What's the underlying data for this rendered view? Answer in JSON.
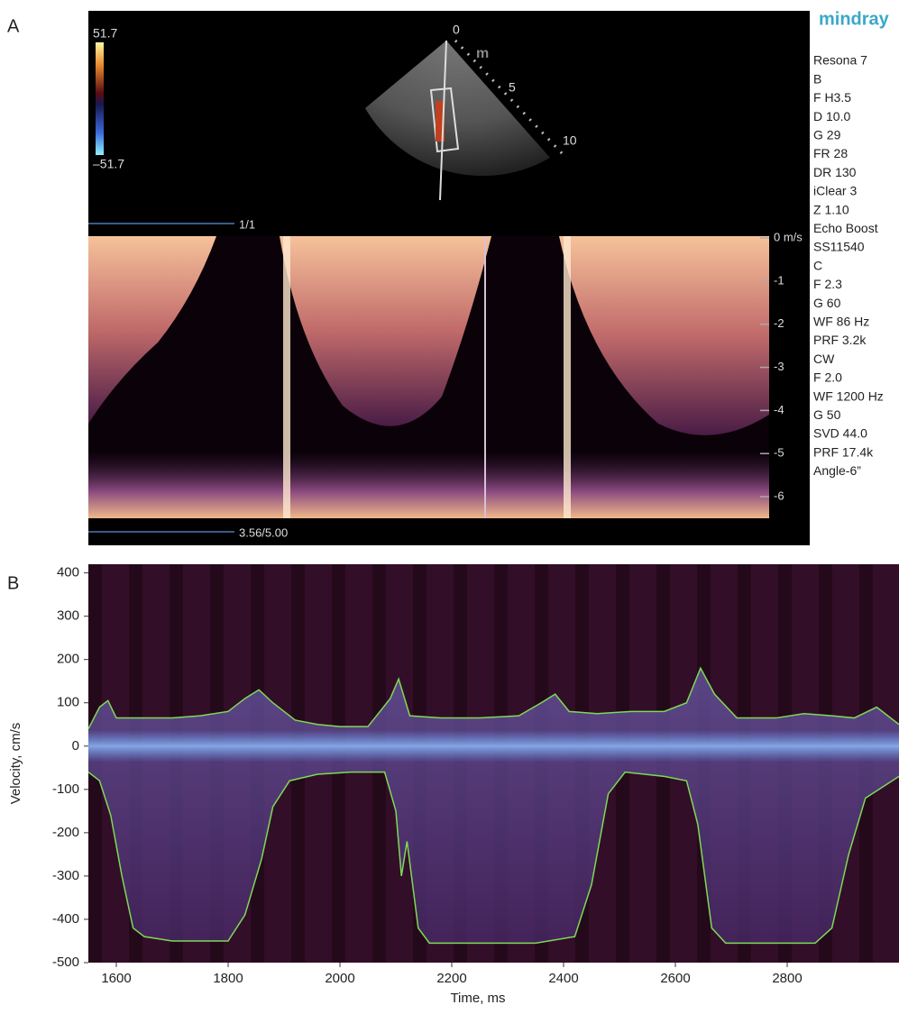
{
  "panel_a": {
    "label": "A",
    "brand": "mindray",
    "colorbar_labels": [
      "51.7",
      "–51.7"
    ],
    "depth_labels": [
      "0",
      "5",
      "10"
    ],
    "probe_mark": "m",
    "frame_label": "1/1",
    "sweep_label": "3.56/5.00",
    "settings": [
      "Resona 7",
      "B",
      "F H3.5",
      "D 10.0",
      "G 29",
      "FR 28",
      "DR 130",
      "iClear 3",
      "Z 1.10",
      "Echo Boost",
      "SS11540",
      "C",
      "F 2.3",
      "G 60",
      "WF 86 Hz",
      "PRF 3.2k",
      "CW",
      "F 2.0",
      "WF 1200 Hz",
      "G 50",
      "SVD 44.0",
      "PRF 17.4k",
      "Angle-6”"
    ],
    "velocity_scale": {
      "ylim": [
        -6.5,
        0
      ],
      "yticks": [
        {
          "value": 0,
          "label": "0 m/s"
        },
        -1,
        -2,
        -3,
        -4,
        -5,
        -6
      ]
    }
  },
  "chart_data": {
    "type": "line",
    "label": "B",
    "xlabel": "Time, ms",
    "ylabel": "Velocity, cm/s",
    "xlim": [
      1550,
      3000
    ],
    "ylim": [
      -500,
      420
    ],
    "xticks": [
      1600,
      1800,
      2000,
      2200,
      2400,
      2600,
      2800
    ],
    "yticks": [
      -500,
      -400,
      -300,
      -200,
      -100,
      0,
      100,
      200,
      300,
      400
    ],
    "series": [
      {
        "color": "#7ed957",
        "x": [
          1550,
          1570,
          1585,
          1600,
          1650,
          1700,
          1750,
          1800,
          1830,
          1855,
          1880,
          1920,
          1960,
          2000,
          2050,
          2090,
          2105,
          2125,
          2180,
          2250,
          2320,
          2360,
          2385,
          2410,
          2460,
          2520,
          2580,
          2620,
          2645,
          2670,
          2710,
          2780,
          2830,
          2880,
          2920,
          2960,
          3000
        ],
        "values": [
          40,
          90,
          105,
          65,
          65,
          65,
          70,
          80,
          110,
          130,
          100,
          60,
          50,
          45,
          45,
          110,
          155,
          70,
          65,
          65,
          70,
          100,
          120,
          80,
          75,
          80,
          80,
          100,
          180,
          120,
          65,
          65,
          75,
          70,
          65,
          90,
          50
        ]
      },
      {
        "color": "#7ed957",
        "x": [
          1550,
          1570,
          1590,
          1610,
          1630,
          1650,
          1700,
          1750,
          1800,
          1830,
          1860,
          1880,
          1910,
          1960,
          2020,
          2080,
          2100,
          2110,
          2120,
          2140,
          2160,
          2250,
          2350,
          2420,
          2450,
          2480,
          2510,
          2580,
          2620,
          2640,
          2665,
          2690,
          2780,
          2850,
          2880,
          2910,
          2940,
          3000
        ],
        "values": [
          -60,
          -80,
          -160,
          -300,
          -420,
          -440,
          -450,
          -450,
          -450,
          -390,
          -260,
          -140,
          -80,
          -65,
          -60,
          -60,
          -150,
          -300,
          -220,
          -420,
          -455,
          -455,
          -455,
          -440,
          -320,
          -110,
          -60,
          -70,
          -80,
          -180,
          -420,
          -455,
          -455,
          -455,
          -420,
          -250,
          -120,
          -70
        ]
      }
    ]
  }
}
